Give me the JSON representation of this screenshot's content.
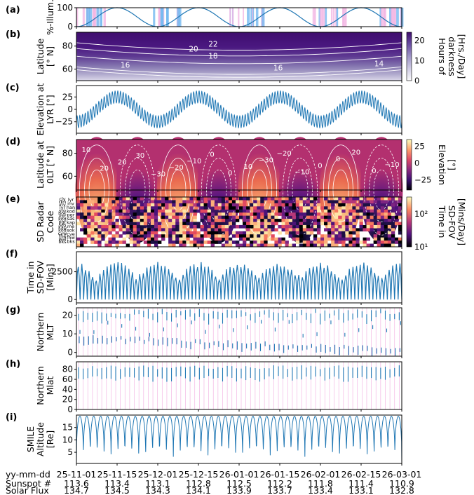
{
  "chart_data": [
    {
      "id": "a",
      "panel_label": "(a)",
      "type": "line",
      "ylabel": [
        "%-Illum."
      ],
      "ylim": [
        0,
        100
      ],
      "yticks": [
        "0",
        "100"
      ],
      "series": [
        {
          "kind": "sinusoid",
          "min": 0,
          "max": 100,
          "cycles": 4,
          "phase": -1.5708
        }
      ],
      "colors": {
        "line": "#1f77b4",
        "band_blue": "#74b9f0",
        "band_pink": "#f3b6e3"
      }
    },
    {
      "id": "b",
      "panel_label": "(b)",
      "type": "heatmap",
      "ylabel": [
        "Latitude",
        "[° N]"
      ],
      "ylim": [
        50,
        92
      ],
      "yticks": [
        "60",
        "80"
      ],
      "colorbar": {
        "label": [
          "Hours of",
          "darkness",
          "[Hrs./Day]"
        ],
        "ticks": [
          "0",
          "10",
          "20"
        ],
        "range": [
          0,
          24
        ],
        "colormap": "Purples"
      },
      "contours": [
        "22",
        "20",
        "18",
        "16",
        "16",
        "14"
      ]
    },
    {
      "id": "c",
      "panel_label": "(c)",
      "type": "line",
      "ylabel": [
        "Elevation at",
        "LYR [°]"
      ],
      "ylim": [
        -48,
        48
      ],
      "yticks": [
        "-25",
        "0",
        "25"
      ],
      "series": [
        {
          "kind": "modulated",
          "slow_amplitude": 25,
          "fast_amplitude": 12,
          "slow_cycles": 4,
          "fast_cycles": 120
        }
      ]
    },
    {
      "id": "d",
      "panel_label": "(d)",
      "type": "heatmap",
      "ylabel": [
        "Latitude at",
        "0LT [° N]"
      ],
      "ylim": [
        48,
        92
      ],
      "yticks": [
        "60",
        "80"
      ],
      "colorbar": {
        "label": [
          "Elevation",
          "[°]"
        ],
        "ticks": [
          "25",
          "0",
          "-25"
        ],
        "range": [
          -40,
          35
        ],
        "colormap": "Magma"
      },
      "contours": [
        "10",
        "20",
        "20",
        "30",
        "-30",
        "-20",
        "-10",
        "0",
        "0",
        "10",
        "-30",
        "-20",
        "-10",
        "0",
        "0",
        "20",
        "0",
        "-10"
      ]
    },
    {
      "id": "e",
      "panel_label": "(e)",
      "type": "heatmap",
      "ylabel": [
        "SD Radar",
        "Code"
      ],
      "radar_codes_left": [
        "cly",
        "rkn",
        "inv",
        "lyr",
        "sto",
        "hok",
        "ksr",
        "kod",
        "pgr",
        "sas",
        "kap",
        "kod",
        "cvw",
        "fhe",
        "wal",
        "bks"
      ],
      "radar_codes_right": [
        "lyr",
        "inv",
        "han",
        "kod",
        "pgr",
        "sas",
        "kap",
        "me",
        "sok",
        "cve",
        "fhw",
        "bks"
      ],
      "colorbar": {
        "label": [
          "Time in",
          "SD-FOV",
          "[Mins/Day]"
        ],
        "ticks": [
          "10²",
          "10¹"
        ],
        "scale": "log",
        "colormap": "Magma"
      }
    },
    {
      "id": "f",
      "panel_label": "(f)",
      "type": "line",
      "ylabel": [
        "Time in",
        "SD-FOV",
        "[Mins]"
      ],
      "ylim": [
        -300,
        4300
      ],
      "yticks": [
        "0",
        "2500"
      ],
      "series": [
        {
          "kind": "oscillating",
          "max": 3900
        }
      ]
    },
    {
      "id": "g",
      "panel_label": "(g)",
      "type": "scatter",
      "ylabel": [
        "Northern",
        "MLT"
      ],
      "ylim": [
        -2,
        24
      ],
      "yticks": [
        "0",
        "10",
        "20"
      ]
    },
    {
      "id": "h",
      "panel_label": "(h)",
      "type": "scatter",
      "ylabel": [
        "Northern",
        "Mlat"
      ],
      "ylim": [
        0,
        95
      ],
      "yticks": [
        "0",
        "20",
        "40",
        "60",
        "80"
      ]
    },
    {
      "id": "i",
      "panel_label": "(i)",
      "type": "line",
      "ylabel": [
        "SMILE",
        "Altitude",
        "[Re]"
      ],
      "ylim": [
        0.5,
        20
      ],
      "yticks": [
        "5",
        "10",
        "15"
      ],
      "series": [
        {
          "kind": "orbit",
          "min": 1,
          "max": 19.5,
          "cycles": 47
        }
      ]
    }
  ],
  "x_axis": {
    "row_labels": [
      "yy-mm-dd",
      "Sunspot #",
      "Solar Flux"
    ],
    "ticks": [
      {
        "date": "25-11-01",
        "sunspot": "113.6",
        "flux": "134.7"
      },
      {
        "date": "25-11-15",
        "sunspot": "113.4",
        "flux": "134.5"
      },
      {
        "date": "25-12-01",
        "sunspot": "113.1",
        "flux": "134.3"
      },
      {
        "date": "25-12-15",
        "sunspot": "112.8",
        "flux": "134.1"
      },
      {
        "date": "26-01-01",
        "sunspot": "112.5",
        "flux": "133.9"
      },
      {
        "date": "26-01-15",
        "sunspot": "112.2",
        "flux": "133.7"
      },
      {
        "date": "26-02-01",
        "sunspot": "111.8",
        "flux": "133.4"
      },
      {
        "date": "26-02-15",
        "sunspot": "111.4",
        "flux": "133.1"
      },
      {
        "date": "26-03-01",
        "sunspot": "110.9",
        "flux": "132.8"
      }
    ]
  }
}
